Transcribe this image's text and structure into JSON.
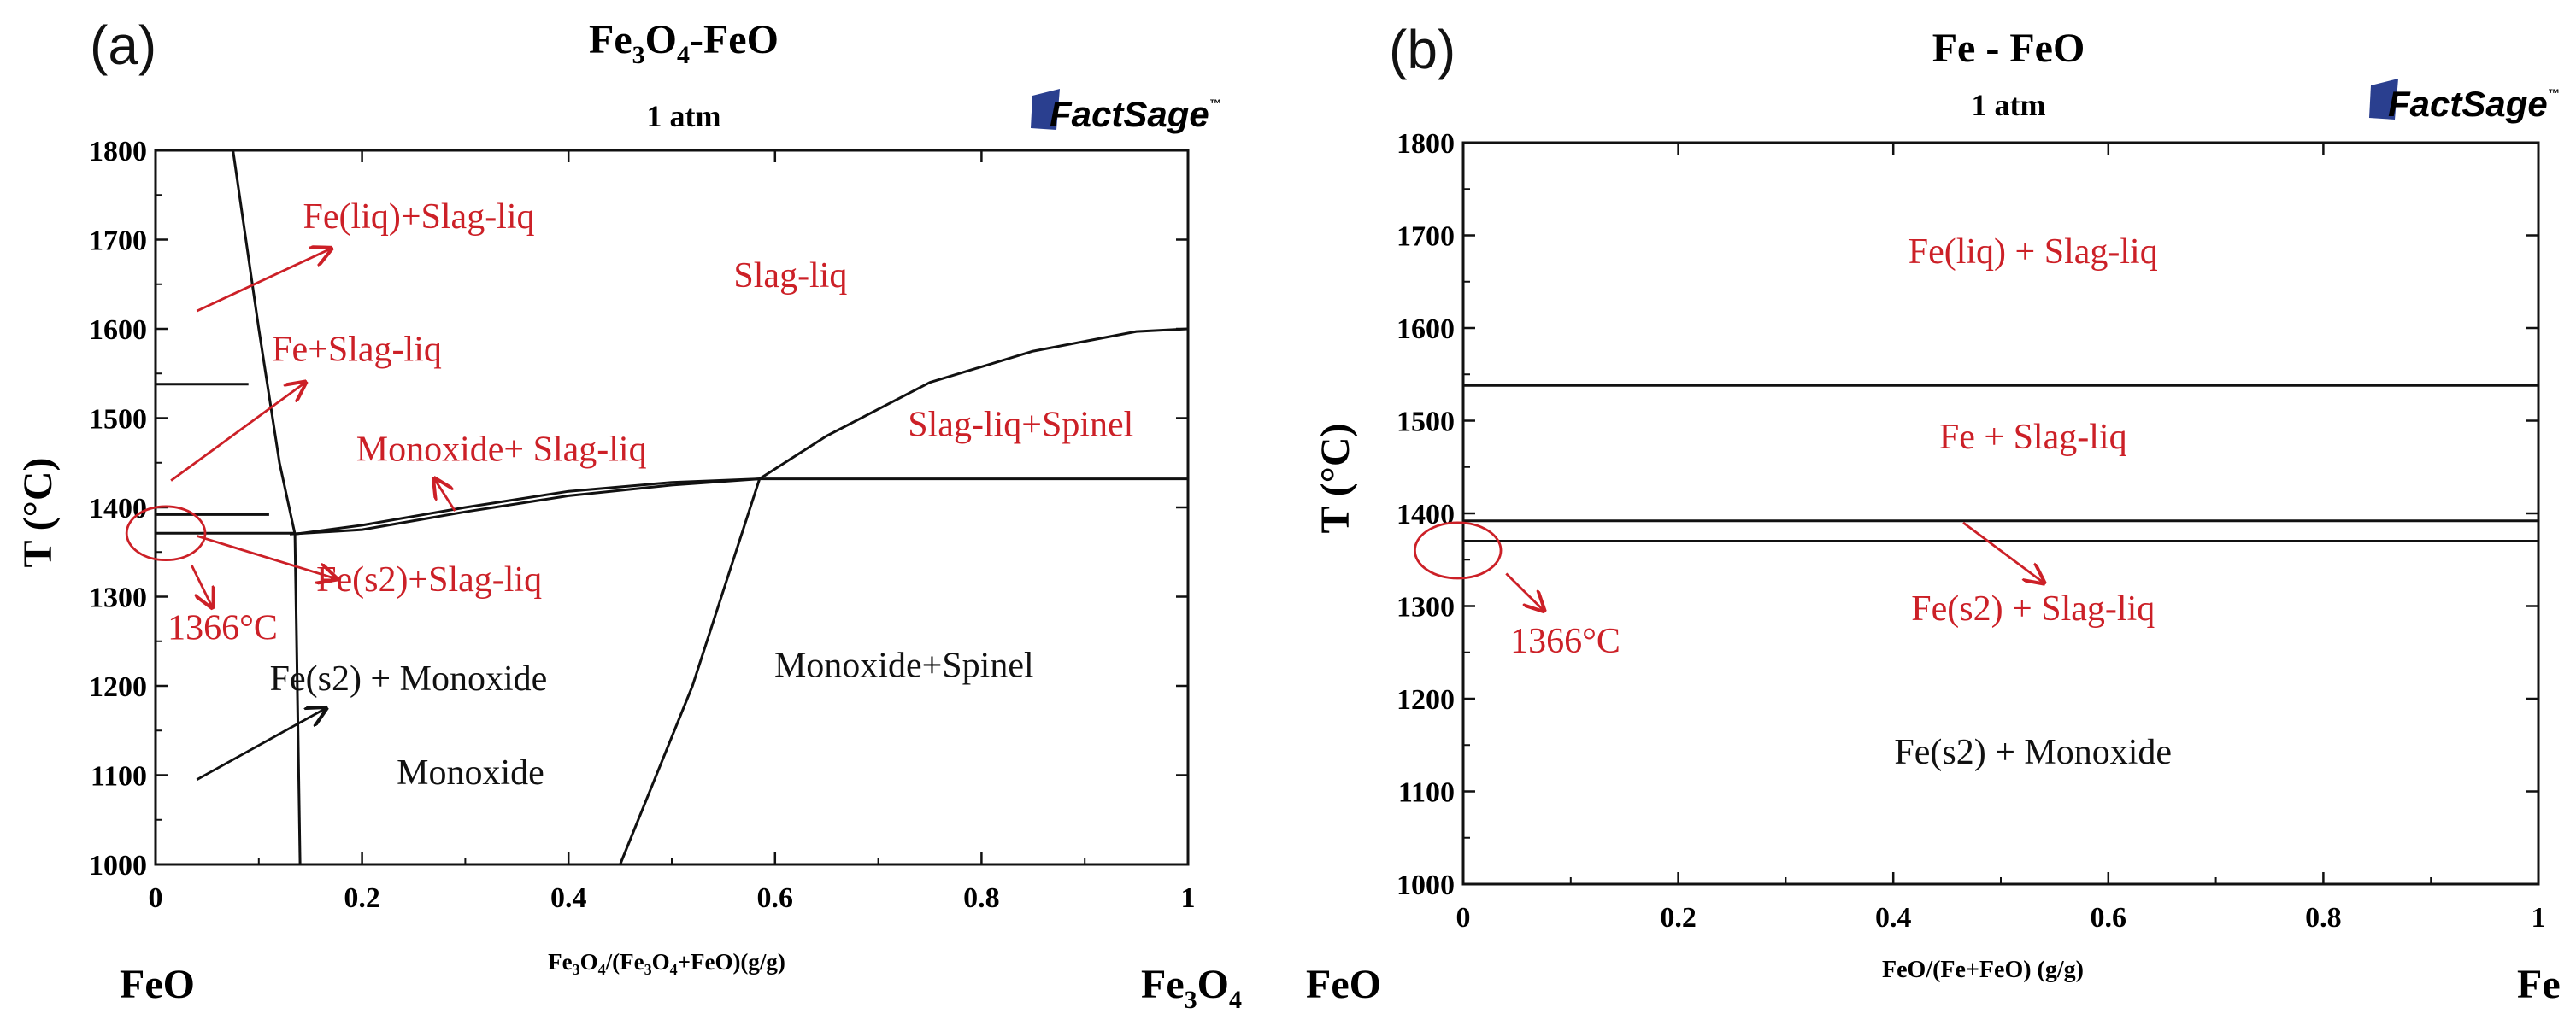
{
  "colors": {
    "navy": "#2f4a6f",
    "red": "#cc2027",
    "black": "#111111",
    "logo": "#2a3f8f"
  },
  "logo": {
    "text": "FactSage",
    "tm": "™"
  },
  "chart_data": [
    {
      "id": "a",
      "type": "line",
      "panel_label": "(a)",
      "title_main": "Fe",
      "title_sub1": "3",
      "title_mid": "O",
      "title_sub2": "4",
      "title_end": "-FeO",
      "subtitle": "1 atm",
      "ylabel": "T (°C)",
      "xlabel_parts": [
        "Fe",
        "3",
        "O",
        "4",
        "/(Fe",
        "3",
        "O",
        "4",
        "+FeO)(g/g)"
      ],
      "xlim": [
        0,
        1
      ],
      "ylim": [
        1000,
        1800
      ],
      "x_ticks": [
        0,
        0.2,
        0.4,
        0.6,
        0.8,
        1
      ],
      "x_tick_labels": [
        "0",
        "0.2",
        "0.4",
        "0.6",
        "0.8",
        "1"
      ],
      "y_ticks": [
        1000,
        1100,
        1200,
        1300,
        1400,
        1500,
        1600,
        1700,
        1800
      ],
      "y_tick_labels": [
        "1000",
        "1100",
        "1200",
        "1300",
        "1400",
        "1500",
        "1600",
        "1700",
        "1800"
      ],
      "left_end": "FeO",
      "right_end_main": "Fe",
      "right_end_sub1": "3",
      "right_end_mid": "O",
      "right_end_sub2": "4",
      "boundaries": [
        {
          "name": "fe-liquidus",
          "points": [
            [
              0.075,
              1800
            ],
            [
              0.1,
              1600
            ],
            [
              0.12,
              1450
            ],
            [
              0.135,
              1370
            ]
          ]
        },
        {
          "name": "fe-delta-gamma",
          "points": [
            [
              0,
              1538
            ],
            [
              0.09,
              1538
            ]
          ]
        },
        {
          "name": "fe-gamma-line",
          "points": [
            [
              0,
              1392
            ],
            [
              0.11,
              1392
            ]
          ]
        },
        {
          "name": "eutectic-line",
          "points": [
            [
              0,
              1371
            ],
            [
              0.135,
              1371
            ]
          ]
        },
        {
          "name": "monoxide-liquidus",
          "points": [
            [
              0.13,
              1370
            ],
            [
              0.2,
              1375
            ],
            [
              0.3,
              1395
            ],
            [
              0.4,
              1413
            ],
            [
              0.5,
              1425
            ],
            [
              0.585,
              1432
            ]
          ]
        },
        {
          "name": "monoxide-solidus",
          "points": [
            [
              0.135,
              1370
            ],
            [
              0.2,
              1380
            ],
            [
              0.3,
              1400
            ],
            [
              0.4,
              1418
            ],
            [
              0.5,
              1428
            ],
            [
              0.585,
              1432
            ]
          ]
        },
        {
          "name": "spinel-peritectic",
          "points": [
            [
              0.585,
              1432
            ],
            [
              1.0,
              1432
            ]
          ]
        },
        {
          "name": "spinel-liquidus",
          "points": [
            [
              0.585,
              1432
            ],
            [
              0.65,
              1480
            ],
            [
              0.75,
              1540
            ],
            [
              0.85,
              1575
            ],
            [
              0.95,
              1597
            ],
            [
              1.0,
              1600
            ]
          ]
        },
        {
          "name": "fe-monoxide-boundary",
          "points": [
            [
              0.135,
              1370
            ],
            [
              0.14,
              1000
            ]
          ]
        },
        {
          "name": "monoxide-spinel-boundary",
          "points": [
            [
              0.45,
              1000
            ],
            [
              0.52,
              1200
            ],
            [
              0.585,
              1432
            ]
          ]
        }
      ],
      "region_labels": [
        {
          "text": "Fe(liq)+Slag-liq",
          "x": 0.255,
          "y": 1713,
          "color": "red"
        },
        {
          "text": "Slag-liq",
          "x": 0.615,
          "y": 1647,
          "color": "red"
        },
        {
          "text": "Fe+Slag-liq",
          "x": 0.195,
          "y": 1564,
          "color": "red"
        },
        {
          "text": "Slag-liq+Spinel",
          "x": 0.838,
          "y": 1480,
          "color": "red"
        },
        {
          "text": "Monoxide+ Slag-liq",
          "x": 0.335,
          "y": 1452,
          "color": "red"
        },
        {
          "text": "Fe(s2)+Slag-liq",
          "x": 0.265,
          "y": 1306,
          "color": "red"
        },
        {
          "text": "1366°C",
          "x": 0.065,
          "y": 1252,
          "color": "red"
        },
        {
          "text": "Fe(s2) + Monoxide",
          "x": 0.245,
          "y": 1195,
          "color": "black"
        },
        {
          "text": "Monoxide",
          "x": 0.305,
          "y": 1090,
          "color": "black"
        },
        {
          "text": "Monoxide+Spinel",
          "x": 0.725,
          "y": 1210,
          "color": "black"
        }
      ],
      "arrows": [
        {
          "from": [
            0.04,
            1620
          ],
          "to": [
            0.17,
            1690
          ],
          "color": "red"
        },
        {
          "from": [
            0.015,
            1430
          ],
          "to": [
            0.145,
            1540
          ],
          "color": "red"
        },
        {
          "from": [
            0.29,
            1396
          ],
          "to": [
            0.27,
            1432
          ],
          "color": "red"
        },
        {
          "from": [
            0.04,
            1368
          ],
          "to": [
            0.175,
            1320
          ],
          "color": "red"
        },
        {
          "from": [
            0.035,
            1335
          ],
          "to": [
            0.055,
            1288
          ],
          "color": "red"
        },
        {
          "from": [
            0.04,
            1095
          ],
          "to": [
            0.165,
            1175
          ],
          "color": "black"
        }
      ],
      "ellipse": {
        "cx": 0.01,
        "cy": 1371,
        "rx": 0.038,
        "ry": 30
      }
    },
    {
      "id": "b",
      "type": "line",
      "panel_label": "(b)",
      "title": "Fe - FeO",
      "subtitle": "1 atm",
      "ylabel": "T (°C)",
      "xlabel": "FeO/(Fe+FeO) (g/g)",
      "xlim": [
        0,
        1
      ],
      "ylim": [
        1000,
        1800
      ],
      "x_ticks": [
        0,
        0.2,
        0.4,
        0.6,
        0.8,
        1
      ],
      "x_tick_labels": [
        "0",
        "0.2",
        "0.4",
        "0.6",
        "0.8",
        "1"
      ],
      "y_ticks": [
        1000,
        1100,
        1200,
        1300,
        1400,
        1500,
        1600,
        1700,
        1800
      ],
      "y_tick_labels": [
        "1000",
        "1100",
        "1200",
        "1300",
        "1400",
        "1500",
        "1600",
        "1700",
        "1800"
      ],
      "left_end": "FeO",
      "right_end": "Fe",
      "boundaries": [
        {
          "name": "fe-delta-gamma",
          "points": [
            [
              0,
              1538
            ],
            [
              1,
              1538
            ]
          ]
        },
        {
          "name": "fe-gamma-line",
          "points": [
            [
              0,
              1392
            ],
            [
              1,
              1392
            ]
          ]
        },
        {
          "name": "eutectic-line",
          "points": [
            [
              0,
              1370
            ],
            [
              1,
              1370
            ]
          ]
        }
      ],
      "region_labels": [
        {
          "text": "Fe(liq) + Slag-liq",
          "x": 0.53,
          "y": 1670,
          "color": "red"
        },
        {
          "text": "Fe + Slag-liq",
          "x": 0.53,
          "y": 1470,
          "color": "red"
        },
        {
          "text": "Fe(s2) + Slag-liq",
          "x": 0.53,
          "y": 1285,
          "color": "red"
        },
        {
          "text": "1366°C",
          "x": 0.095,
          "y": 1250,
          "color": "red"
        },
        {
          "text": "Fe(s2) + Monoxide",
          "x": 0.53,
          "y": 1130,
          "color": "black"
        }
      ],
      "arrows": [
        {
          "from": [
            0.465,
            1390
          ],
          "to": [
            0.54,
            1325
          ],
          "color": "red"
        },
        {
          "from": [
            0.04,
            1335
          ],
          "to": [
            0.075,
            1295
          ],
          "color": "red"
        }
      ],
      "ellipse": {
        "cx": -0.005,
        "cy": 1360,
        "rx": 0.04,
        "ry": 30
      }
    }
  ]
}
